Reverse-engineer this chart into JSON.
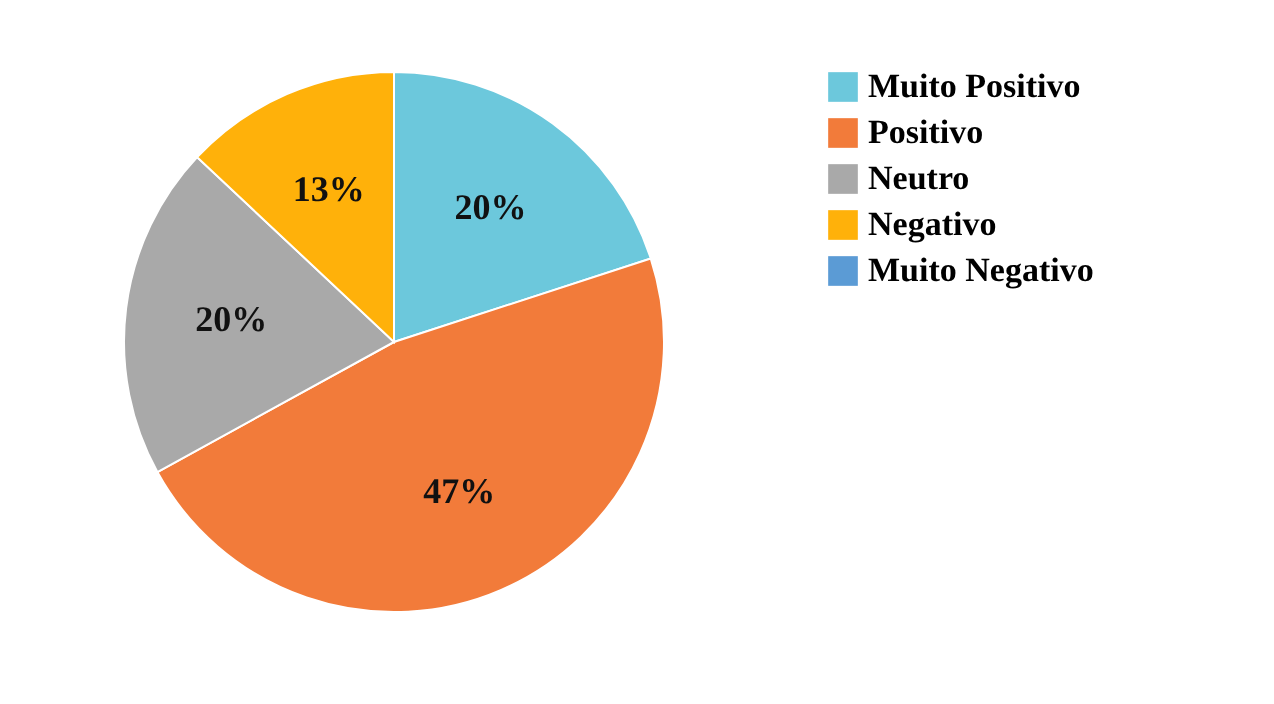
{
  "chart_data": {
    "type": "pie",
    "categories": [
      "Muito Positivo",
      "Positivo",
      "Neutro",
      "Negativo",
      "Muito Negativo"
    ],
    "values": [
      20,
      47,
      20,
      13,
      0
    ],
    "colors": [
      "#6cc8dc",
      "#f27b3a",
      "#a9a9a9",
      "#ffb10a",
      "#5b9bd5"
    ],
    "value_labels": [
      "20%",
      "47%",
      "20%",
      "13%",
      null
    ],
    "legend": "right"
  }
}
